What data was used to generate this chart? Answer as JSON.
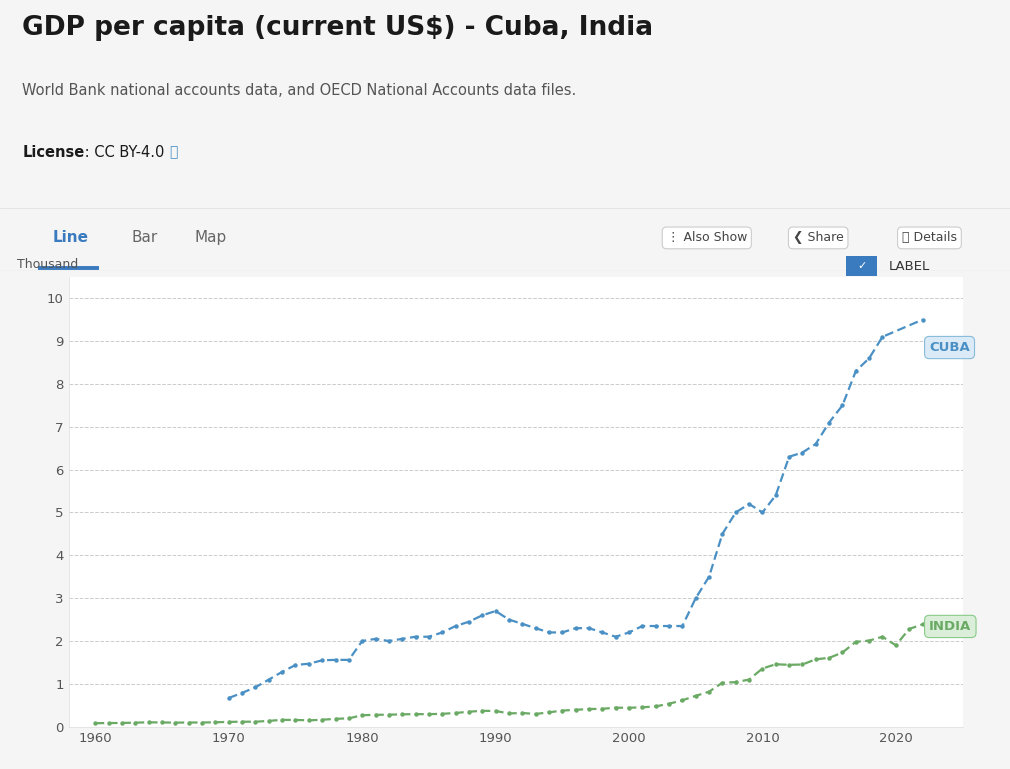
{
  "title": "GDP per capita (current US$) - Cuba, India",
  "subtitle": "World Bank national accounts data, and OECD National Accounts data files.",
  "license_bold": "License",
  "license_rest": " : CC BY-4.0",
  "ylabel": "Thousand",
  "page_bg": "#f5f5f5",
  "chart_bg": "#ffffff",
  "panel_bg": "#ffffff",
  "cuba_color": "#4a90c4",
  "india_color": "#6aaa64",
  "cuba_years": [
    1960,
    1961,
    1962,
    1963,
    1964,
    1965,
    1966,
    1967,
    1968,
    1969,
    1970,
    1971,
    1972,
    1973,
    1974,
    1975,
    1976,
    1977,
    1978,
    1979,
    1980,
    1981,
    1982,
    1983,
    1984,
    1985,
    1986,
    1987,
    1988,
    1989,
    1990,
    1991,
    1992,
    1993,
    1994,
    1995,
    1996,
    1997,
    1998,
    1999,
    2000,
    2001,
    2002,
    2003,
    2004,
    2005,
    2006,
    2007,
    2008,
    2009,
    2010,
    2011,
    2012,
    2013,
    2014,
    2015,
    2016,
    2017,
    2018,
    2019,
    2020,
    2021,
    2022
  ],
  "cuba_values": [
    null,
    null,
    null,
    null,
    null,
    null,
    null,
    null,
    null,
    null,
    0.67,
    0.79,
    0.92,
    1.1,
    1.28,
    1.44,
    1.47,
    1.55,
    1.56,
    1.56,
    2.0,
    2.05,
    2.0,
    2.05,
    2.1,
    2.1,
    2.2,
    2.35,
    2.45,
    2.6,
    2.7,
    2.5,
    2.4,
    2.3,
    2.2,
    2.2,
    2.3,
    2.3,
    2.2,
    2.1,
    2.2,
    2.35,
    2.35,
    2.35,
    2.35,
    3.0,
    3.5,
    4.5,
    5.0,
    5.2,
    5.0,
    5.4,
    6.3,
    6.4,
    6.6,
    7.1,
    7.5,
    8.3,
    8.6,
    9.1,
    null,
    null,
    9.5
  ],
  "india_years": [
    1960,
    1961,
    1962,
    1963,
    1964,
    1965,
    1966,
    1967,
    1968,
    1969,
    1970,
    1971,
    1972,
    1973,
    1974,
    1975,
    1976,
    1977,
    1978,
    1979,
    1980,
    1981,
    1982,
    1983,
    1984,
    1985,
    1986,
    1987,
    1988,
    1989,
    1990,
    1991,
    1992,
    1993,
    1994,
    1995,
    1996,
    1997,
    1998,
    1999,
    2000,
    2001,
    2002,
    2003,
    2004,
    2005,
    2006,
    2007,
    2008,
    2009,
    2010,
    2011,
    2012,
    2013,
    2014,
    2015,
    2016,
    2017,
    2018,
    2019,
    2020,
    2021,
    2022
  ],
  "india_values": [
    0.082,
    0.085,
    0.088,
    0.095,
    0.102,
    0.099,
    0.095,
    0.098,
    0.098,
    0.103,
    0.112,
    0.117,
    0.116,
    0.136,
    0.16,
    0.158,
    0.148,
    0.163,
    0.183,
    0.196,
    0.267,
    0.278,
    0.28,
    0.289,
    0.293,
    0.293,
    0.301,
    0.32,
    0.35,
    0.371,
    0.367,
    0.31,
    0.32,
    0.297,
    0.336,
    0.376,
    0.395,
    0.412,
    0.418,
    0.444,
    0.442,
    0.453,
    0.474,
    0.536,
    0.617,
    0.72,
    0.817,
    1.026,
    1.04,
    1.1,
    1.358,
    1.458,
    1.444,
    1.452,
    1.574,
    1.606,
    1.732,
    1.981,
    2.01,
    2.1,
    1.9,
    2.28,
    2.39
  ],
  "xlim": [
    1958,
    2025
  ],
  "ylim": [
    0,
    10.5
  ],
  "yticks": [
    0,
    1,
    2,
    3,
    4,
    5,
    6,
    7,
    8,
    9,
    10
  ],
  "xticks": [
    1960,
    1970,
    1980,
    1990,
    2000,
    2010,
    2020
  ],
  "cuba_label": "CUBA",
  "india_label": "INDIA",
  "label_bg_cuba": "#daeaf7",
  "label_bg_india": "#daeeda",
  "label_border_cuba": "#88bbd8",
  "label_border_india": "#88cc88",
  "tab_line_color": "#3a7abf",
  "tab_underline_color": "#3a7abf",
  "grid_color": "#cccccc",
  "tick_color": "#555555"
}
